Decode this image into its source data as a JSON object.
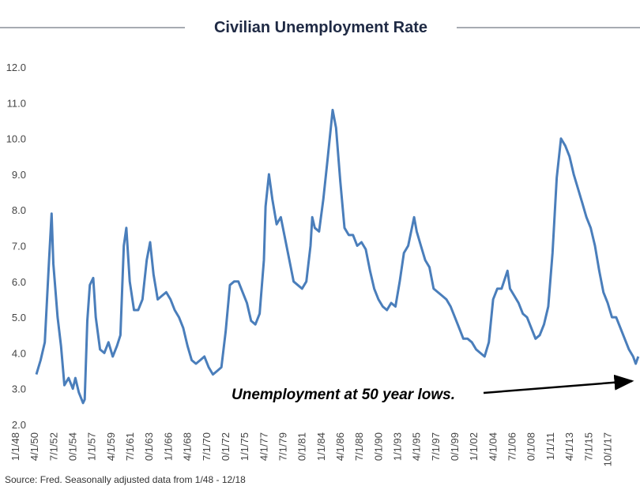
{
  "chart_data": {
    "type": "line",
    "title": "Civilian Unemployment Rate",
    "annotation": "Unemployment at 50 year lows.",
    "source": "Source: Fred. Seasonally adjusted data from 1/48 - 12/18",
    "series": [
      {
        "name": "Civilian Unemployment Rate",
        "color": "#4a7ebb",
        "x": [
          1948.0,
          1948.5,
          1949.0,
          1949.5,
          1949.8,
          1950.0,
          1950.5,
          1950.9,
          1951.3,
          1951.8,
          1952.3,
          1952.6,
          1953.0,
          1953.5,
          1953.7,
          1954.0,
          1954.3,
          1954.7,
          1955.0,
          1955.5,
          1956.0,
          1956.5,
          1957.0,
          1957.5,
          1957.9,
          1958.3,
          1958.6,
          1959.0,
          1959.5,
          1960.0,
          1960.5,
          1961.0,
          1961.4,
          1961.8,
          1962.3,
          1962.8,
          1963.3,
          1963.8,
          1964.3,
          1964.8,
          1965.3,
          1965.8,
          1966.3,
          1966.8,
          1967.3,
          1967.8,
          1968.3,
          1968.8,
          1969.3,
          1969.8,
          1970.3,
          1970.8,
          1971.3,
          1971.8,
          1972.3,
          1972.8,
          1973.3,
          1973.8,
          1974.3,
          1974.8,
          1975.0,
          1975.4,
          1975.8,
          1976.3,
          1976.8,
          1977.3,
          1977.8,
          1978.3,
          1978.8,
          1979.3,
          1979.8,
          1980.3,
          1980.5,
          1980.8,
          1981.3,
          1981.8,
          1982.3,
          1982.9,
          1983.3,
          1983.8,
          1984.3,
          1984.8,
          1985.3,
          1985.8,
          1986.3,
          1986.8,
          1987.3,
          1987.8,
          1988.3,
          1988.8,
          1989.3,
          1989.8,
          1990.3,
          1990.8,
          1991.3,
          1991.8,
          1992.5,
          1992.8,
          1993.3,
          1993.8,
          1994.3,
          1994.8,
          1995.3,
          1995.8,
          1996.3,
          1996.8,
          1997.3,
          1997.8,
          1998.3,
          1998.8,
          1999.3,
          1999.8,
          2000.3,
          2000.8,
          2001.3,
          2001.8,
          2002.3,
          2002.8,
          2003.5,
          2003.8,
          2004.3,
          2004.8,
          2005.3,
          2005.8,
          2006.3,
          2006.8,
          2007.3,
          2007.8,
          2008.3,
          2008.8,
          2009.3,
          2009.8,
          2010.3,
          2010.8,
          2011.3,
          2011.8,
          2012.3,
          2012.8,
          2013.3,
          2013.8,
          2014.3,
          2014.8,
          2015.3,
          2015.8,
          2016.3,
          2016.8,
          2017.3,
          2017.8,
          2018.3,
          2018.6,
          2018.9
        ],
        "values": [
          3.4,
          3.8,
          4.3,
          6.6,
          7.9,
          6.5,
          5.0,
          4.2,
          3.1,
          3.3,
          3.0,
          3.3,
          2.9,
          2.6,
          2.7,
          4.9,
          5.9,
          6.1,
          5.0,
          4.1,
          4.0,
          4.3,
          3.9,
          4.2,
          4.5,
          7.0,
          7.5,
          6.0,
          5.2,
          5.2,
          5.5,
          6.6,
          7.1,
          6.2,
          5.5,
          5.6,
          5.7,
          5.5,
          5.2,
          5.0,
          4.7,
          4.2,
          3.8,
          3.7,
          3.8,
          3.9,
          3.6,
          3.4,
          3.5,
          3.6,
          4.6,
          5.9,
          6.0,
          6.0,
          5.7,
          5.4,
          4.9,
          4.8,
          5.1,
          6.6,
          8.1,
          9.0,
          8.3,
          7.6,
          7.8,
          7.2,
          6.6,
          6.0,
          5.9,
          5.8,
          6.0,
          7.0,
          7.8,
          7.5,
          7.4,
          8.3,
          9.4,
          10.8,
          10.3,
          8.8,
          7.5,
          7.3,
          7.3,
          7.0,
          7.1,
          6.9,
          6.3,
          5.8,
          5.5,
          5.3,
          5.2,
          5.4,
          5.3,
          6.0,
          6.8,
          7.0,
          7.8,
          7.4,
          7.0,
          6.6,
          6.4,
          5.8,
          5.7,
          5.6,
          5.5,
          5.3,
          5.0,
          4.7,
          4.4,
          4.4,
          4.3,
          4.1,
          4.0,
          3.9,
          4.3,
          5.5,
          5.8,
          5.8,
          6.3,
          5.8,
          5.6,
          5.4,
          5.1,
          5.0,
          4.7,
          4.4,
          4.5,
          4.8,
          5.3,
          6.8,
          8.9,
          10.0,
          9.8,
          9.5,
          9.0,
          8.6,
          8.2,
          7.8,
          7.5,
          7.0,
          6.3,
          5.7,
          5.4,
          5.0,
          5.0,
          4.7,
          4.4,
          4.1,
          3.9,
          3.7,
          3.9
        ]
      }
    ],
    "xlim": [
      1948.0,
      2018.92
    ],
    "xticks": [
      {
        "value": 1948.0,
        "label": "1/1/48"
      },
      {
        "value": 1950.25,
        "label": "4/1/50"
      },
      {
        "value": 1952.5,
        "label": "7/1/52"
      },
      {
        "value": 1954.75,
        "label": "0/1/54"
      },
      {
        "value": 1957.0,
        "label": "1/1/57"
      },
      {
        "value": 1959.25,
        "label": "4/1/59"
      },
      {
        "value": 1961.5,
        "label": "7/1/61"
      },
      {
        "value": 1963.75,
        "label": "0/1/63"
      },
      {
        "value": 1966.0,
        "label": "1/1/66"
      },
      {
        "value": 1968.25,
        "label": "4/1/68"
      },
      {
        "value": 1970.5,
        "label": "7/1/70"
      },
      {
        "value": 1972.75,
        "label": "0/1/72"
      },
      {
        "value": 1975.0,
        "label": "1/1/75"
      },
      {
        "value": 1977.25,
        "label": "4/1/77"
      },
      {
        "value": 1979.5,
        "label": "7/1/79"
      },
      {
        "value": 1981.75,
        "label": "0/1/81"
      },
      {
        "value": 1984.0,
        "label": "1/1/84"
      },
      {
        "value": 1986.25,
        "label": "4/1/86"
      },
      {
        "value": 1988.5,
        "label": "7/1/88"
      },
      {
        "value": 1990.75,
        "label": "0/1/90"
      },
      {
        "value": 1993.0,
        "label": "1/1/93"
      },
      {
        "value": 1995.25,
        "label": "4/1/95"
      },
      {
        "value": 1997.5,
        "label": "7/1/97"
      },
      {
        "value": 1999.75,
        "label": "0/1/99"
      },
      {
        "value": 2002.0,
        "label": "1/1/02"
      },
      {
        "value": 2004.25,
        "label": "4/1/04"
      },
      {
        "value": 2006.5,
        "label": "7/1/06"
      },
      {
        "value": 2008.75,
        "label": "0/1/08"
      },
      {
        "value": 2011.0,
        "label": "1/1/11"
      },
      {
        "value": 2013.25,
        "label": "4/1/13"
      },
      {
        "value": 2015.5,
        "label": "7/1/15"
      },
      {
        "value": 2017.75,
        "label": "10/1/17"
      }
    ],
    "ylim": [
      2,
      12
    ],
    "yticks": [
      {
        "value": 2,
        "label": "2.0"
      },
      {
        "value": 3,
        "label": "3.0"
      },
      {
        "value": 4,
        "label": "4.0"
      },
      {
        "value": 5,
        "label": "5.0"
      },
      {
        "value": 6,
        "label": "6.0"
      },
      {
        "value": 7,
        "label": "7.0"
      },
      {
        "value": 8,
        "label": "8.0"
      },
      {
        "value": 9,
        "label": "9.0"
      },
      {
        "value": 10,
        "label": "10.0"
      },
      {
        "value": 11,
        "label": "11.0"
      },
      {
        "value": 12,
        "label": "12.0"
      }
    ],
    "grid": false
  }
}
